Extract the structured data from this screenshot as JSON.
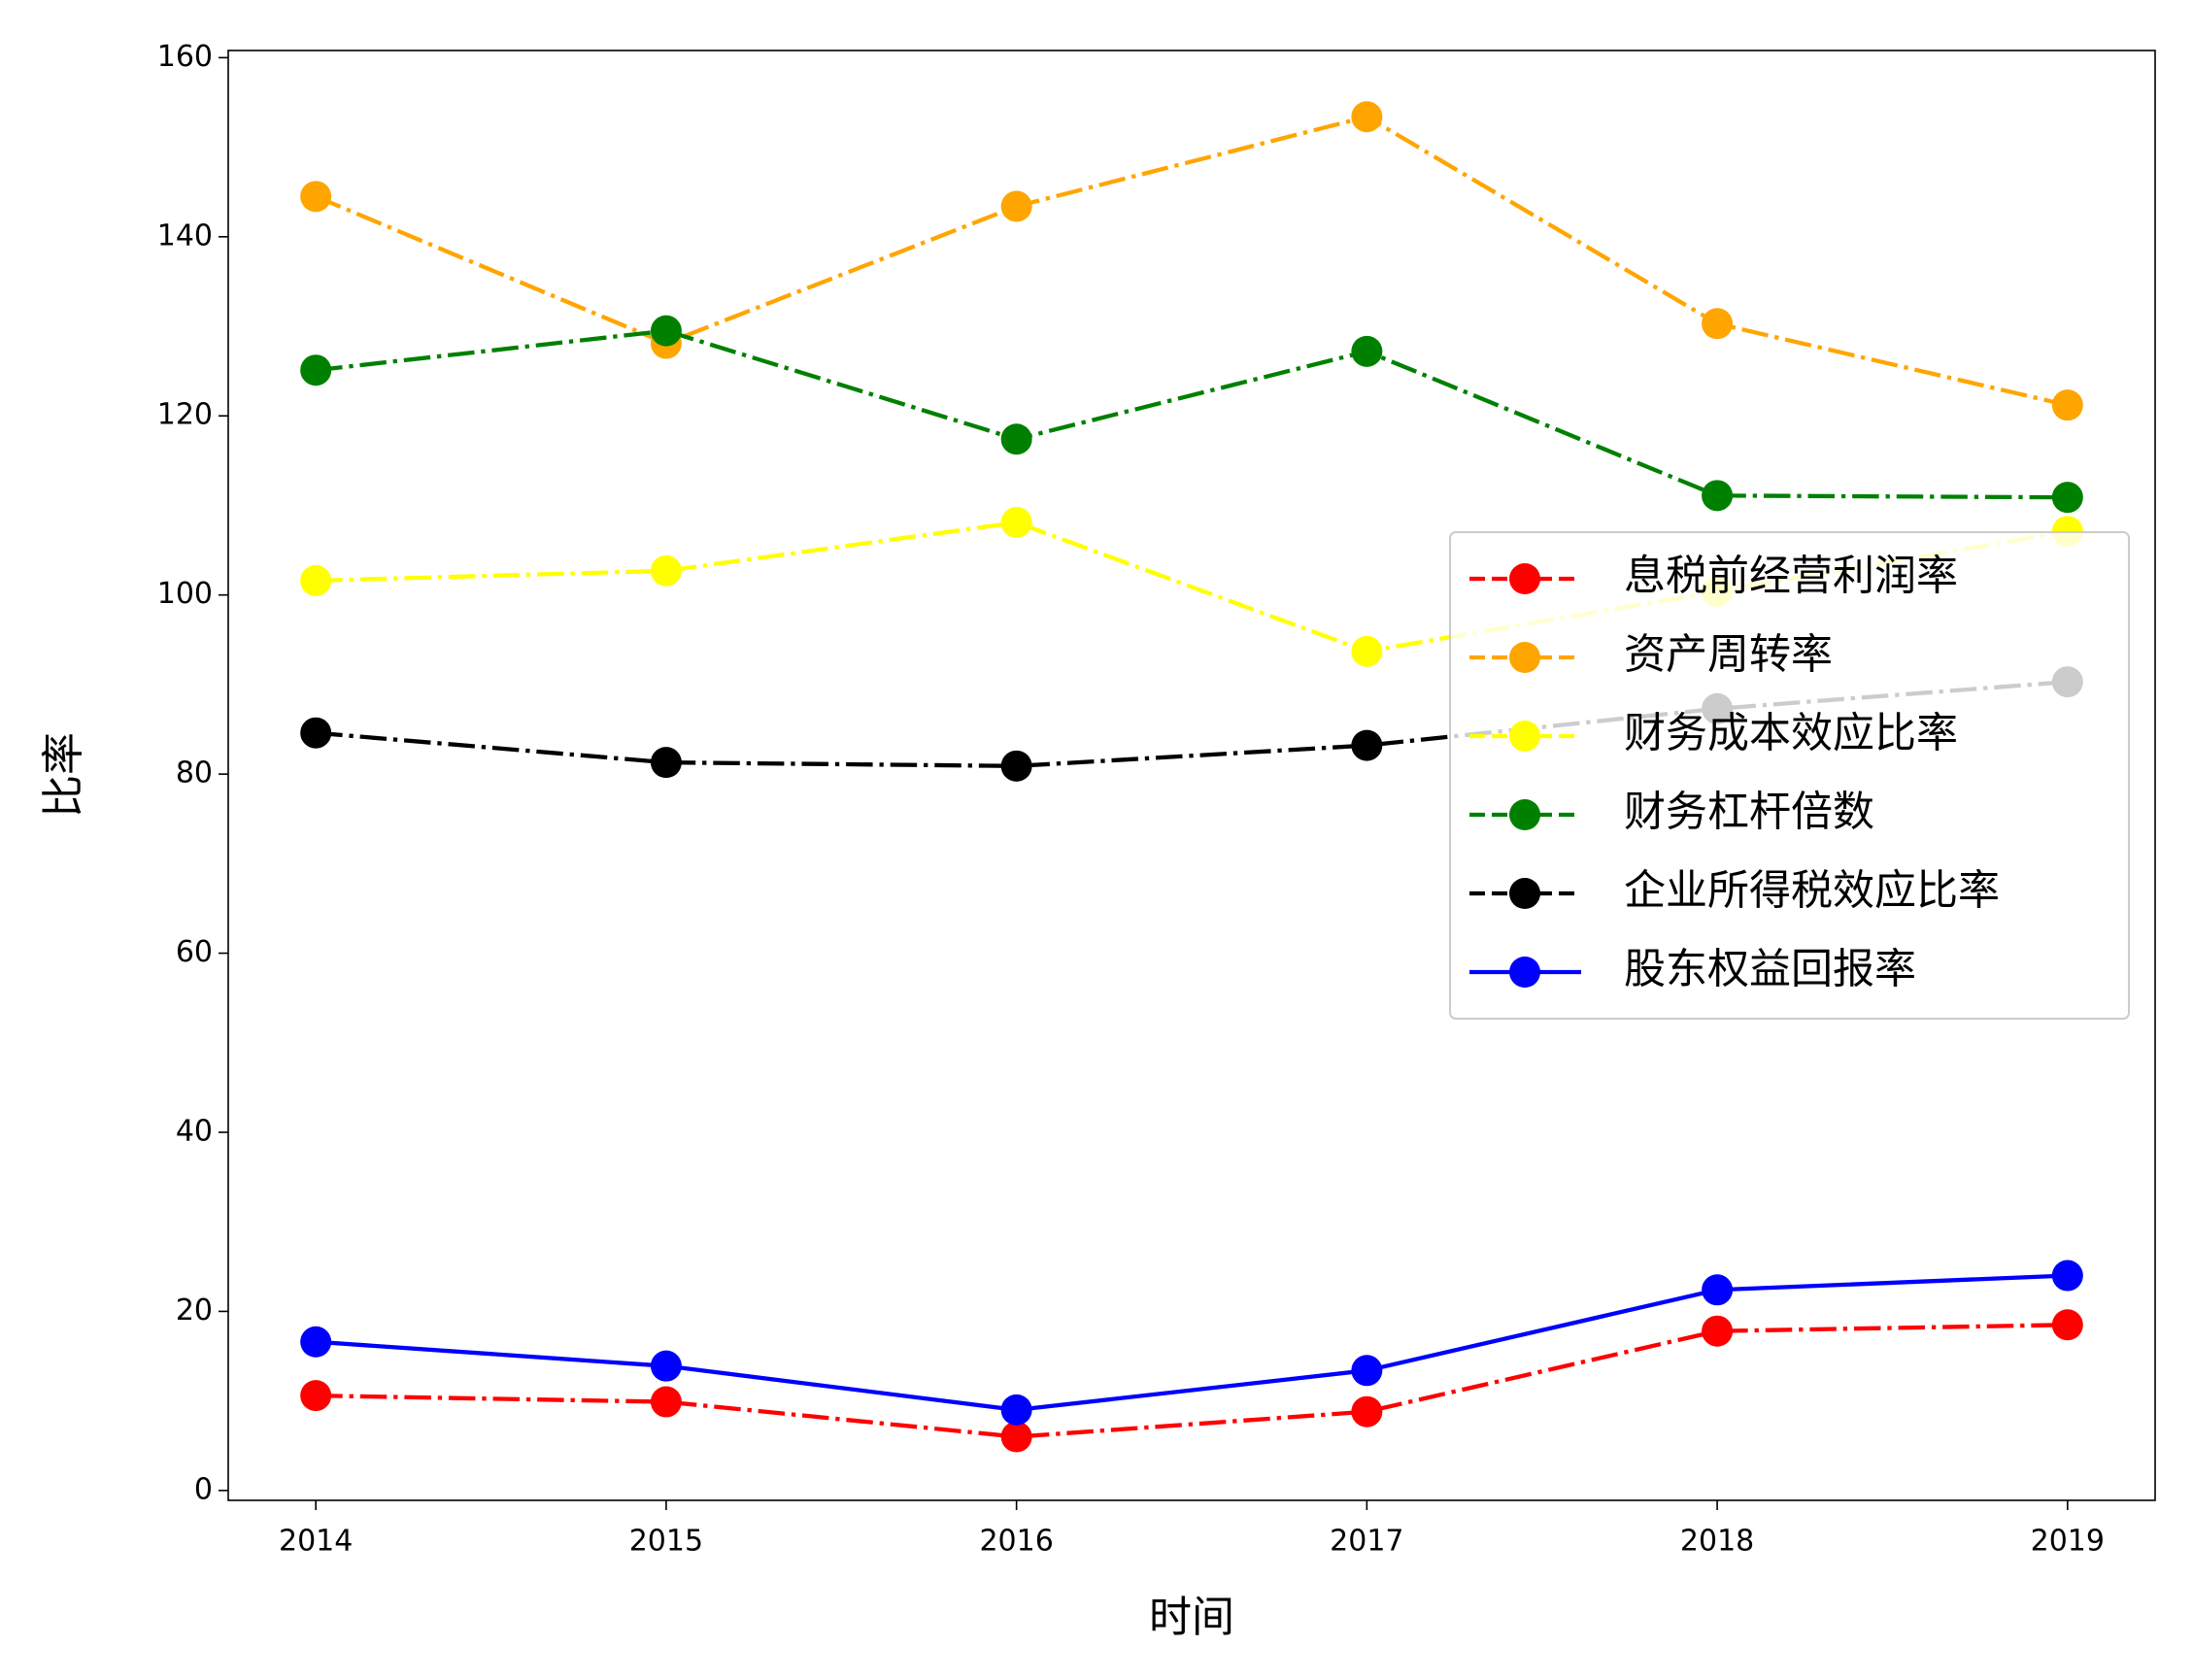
{
  "chart_data": {
    "type": "line",
    "xlabel": "时间",
    "ylabel": "比率",
    "x": [
      2014,
      2015,
      2016,
      2017,
      2018,
      2019
    ],
    "xlim": [
      2013.75,
      2019.25
    ],
    "xticks": [
      2014,
      2015,
      2016,
      2017,
      2018,
      2019
    ],
    "ylim": [
      -1.1,
      160.8
    ],
    "yticks": [
      0,
      20,
      40,
      60,
      80,
      100,
      120,
      140,
      160
    ],
    "grid": false,
    "legend_loc": "center right",
    "series": [
      {
        "name": "息税前经营利润率",
        "color": "#ff0000",
        "linestyle": "dashdot",
        "values": [
          10.6,
          9.9,
          6.0,
          8.8,
          17.8,
          18.5
        ]
      },
      {
        "name": "资产周转率",
        "color": "#ffa500",
        "linestyle": "dashdot",
        "values": [
          144.5,
          128.1,
          143.4,
          153.4,
          130.3,
          121.2
        ]
      },
      {
        "name": "财务成本效应比率",
        "color": "#ffff00",
        "linestyle": "dashdot",
        "values": [
          101.6,
          102.7,
          108.1,
          93.7,
          100.4,
          107.1
        ]
      },
      {
        "name": "财务杠杆倍数",
        "color": "#008000",
        "linestyle": "dashdot",
        "values": [
          125.1,
          129.5,
          117.4,
          127.2,
          111.1,
          110.9
        ]
      },
      {
        "name": "企业所得税效应比率",
        "color": "#000000",
        "linestyle": "dashdot",
        "values": [
          84.6,
          81.3,
          80.9,
          83.2,
          87.3,
          90.3
        ]
      },
      {
        "name": "股东权益回报率",
        "color": "#0000ff",
        "linestyle": "solid",
        "values": [
          16.6,
          13.9,
          9.0,
          13.4,
          22.4,
          24.0
        ]
      }
    ]
  }
}
